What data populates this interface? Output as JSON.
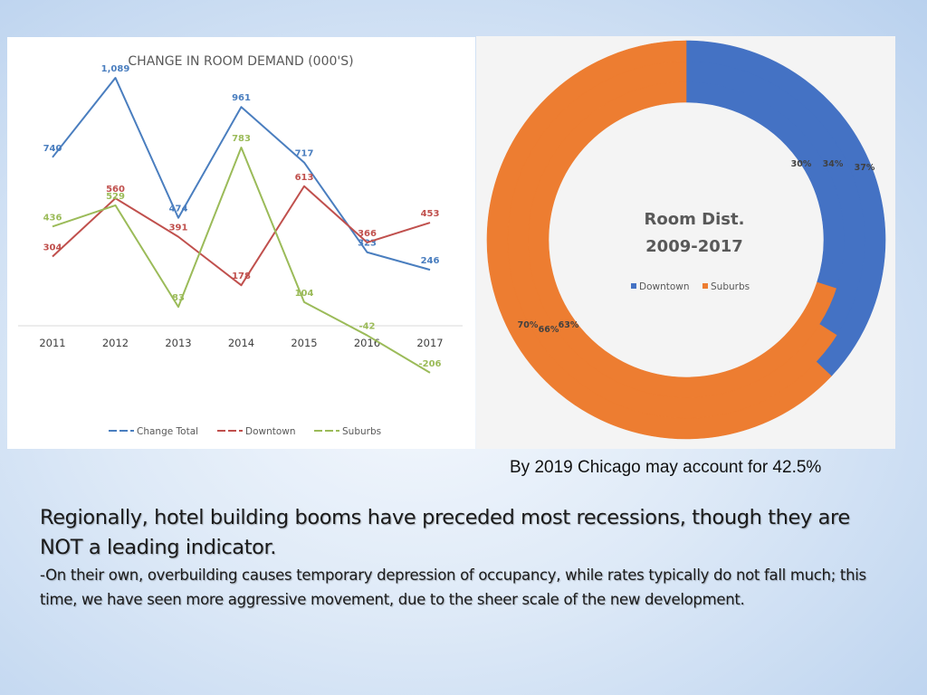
{
  "colors": {
    "change_total": "#4a7ebf",
    "downtown": "#c0504d",
    "suburbs": "#9bbb59",
    "donut_downtown": "#4472c4",
    "donut_suburbs": "#ed7d31"
  },
  "chart_data": [
    {
      "type": "line",
      "title": "CHANGE IN ROOM DEMAND (000'S)",
      "x": [
        "2011",
        "2012",
        "2013",
        "2014",
        "2015",
        "2016",
        "2017"
      ],
      "ylim": [
        -300,
        1200
      ],
      "grid": false,
      "legend_position": "bottom",
      "series": [
        {
          "name": "Change  Total",
          "values": [
            740,
            1089,
            474,
            961,
            717,
            323,
            246
          ],
          "labels": [
            "740",
            "1,089",
            "474",
            "961",
            "717",
            "323",
            "246"
          ]
        },
        {
          "name": "Downtown",
          "values": [
            304,
            560,
            391,
            178,
            613,
            366,
            453
          ],
          "labels": [
            "304",
            "560",
            "391",
            "178",
            "613",
            "366",
            "453"
          ]
        },
        {
          "name": "Suburbs",
          "values": [
            436,
            529,
            83,
            783,
            104,
            -42,
            -206
          ],
          "labels": [
            "436",
            "529",
            "83",
            "783",
            "104",
            "-42",
            "-206"
          ]
        }
      ]
    },
    {
      "type": "pie",
      "subtype": "donut",
      "title": "Room Dist.",
      "subtitle": "2009-2017",
      "legend_position": "right",
      "categories": [
        "Downtown",
        "Suburbs"
      ],
      "rings": [
        {
          "values": [
            30,
            70
          ],
          "labels": [
            "30%",
            "70%"
          ]
        },
        {
          "values": [
            34,
            66
          ],
          "labels": [
            "34%",
            "66%"
          ]
        },
        {
          "values": [
            37,
            63
          ],
          "labels": [
            "37%",
            "63%"
          ]
        }
      ]
    }
  ],
  "note": "By 2019 Chicago may account for 42.5%",
  "caption": {
    "headline": "Regionally, hotel building booms have preceded most recessions, though they are NOT a leading indicator.",
    "body": "-On their own, overbuilding causes temporary depression of occupancy, while rates typically do not fall much; this time, we have seen more aggressive movement, due to the sheer scale of the new development."
  }
}
